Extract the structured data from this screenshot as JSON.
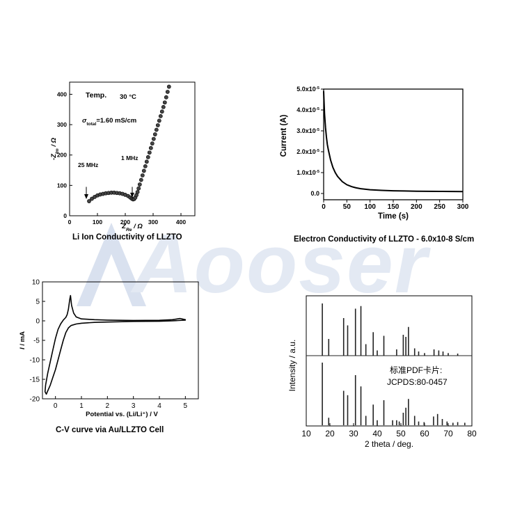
{
  "watermark": {
    "text": "Aooser",
    "color": "#c9d3e6"
  },
  "captions": {
    "impedance": "Li Ion Conductivity of LLZTO",
    "current": "Electron Conductivity of LLZTO   - 6.0x10-8 S/cm",
    "cv": "C-V curve via Au/LLZTO Cell"
  },
  "chart_data": [
    {
      "id": "impedance",
      "type": "scatter",
      "title": "",
      "xlabel_main": "Z",
      "xlabel_sub": "Re",
      "xlabel_unit": " / Ω",
      "ylabel_main": "-Z",
      "ylabel_sub": "Im",
      "ylabel_unit": " / Ω",
      "xlim": [
        0,
        450
      ],
      "ylim": [
        0,
        440
      ],
      "xticks": [
        "0",
        "100",
        "200",
        "300",
        "400"
      ],
      "yticks": [
        "0",
        "100",
        "200",
        "300",
        "400"
      ],
      "annotations": {
        "temp_label": "Temp.",
        "temp_value": "30 °C",
        "sigma_symbol": "σ",
        "sigma_sub": "total",
        "sigma_value": "=1.60 mS/cm",
        "left_freq": "25 MHz",
        "right_freq": "1 MHz"
      },
      "arrows": [
        {
          "x": 60,
          "y_from": 95,
          "y_to": 55
        },
        {
          "x": 225,
          "y_from": 95,
          "y_to": 60
        }
      ],
      "points": [
        [
          70,
          48
        ],
        [
          80,
          56
        ],
        [
          90,
          62
        ],
        [
          100,
          67
        ],
        [
          110,
          70
        ],
        [
          120,
          72
        ],
        [
          130,
          74
        ],
        [
          140,
          75
        ],
        [
          150,
          76
        ],
        [
          160,
          76
        ],
        [
          170,
          75
        ],
        [
          180,
          74
        ],
        [
          190,
          72
        ],
        [
          200,
          69
        ],
        [
          210,
          65
        ],
        [
          218,
          60
        ],
        [
          224,
          56
        ],
        [
          228,
          54
        ],
        [
          232,
          55
        ],
        [
          236,
          60
        ],
        [
          240,
          68
        ],
        [
          244,
          78
        ],
        [
          248,
          90
        ],
        [
          252,
          103
        ],
        [
          257,
          118
        ],
        [
          262,
          133
        ],
        [
          267,
          148
        ],
        [
          272,
          163
        ],
        [
          277,
          178
        ],
        [
          282,
          193
        ],
        [
          287,
          208
        ],
        [
          292,
          223
        ],
        [
          297,
          238
        ],
        [
          302,
          253
        ],
        [
          307,
          268
        ],
        [
          312,
          283
        ],
        [
          317,
          298
        ],
        [
          322,
          313
        ],
        [
          327,
          328
        ],
        [
          332,
          343
        ],
        [
          337,
          358
        ],
        [
          342,
          373
        ],
        [
          347,
          390
        ],
        [
          352,
          408
        ],
        [
          357,
          425
        ]
      ]
    },
    {
      "id": "current",
      "type": "line",
      "title": "",
      "xlabel": "Time (s)",
      "ylabel": "Current (A)",
      "xlim": [
        0,
        300
      ],
      "ylim": [
        -3e-06,
        5e-05
      ],
      "xticks": [
        "0",
        "50",
        "100",
        "150",
        "200",
        "250",
        "300"
      ],
      "ytick_values": [
        0,
        1e-05,
        2e-05,
        3e-05,
        4e-05,
        5e-05
      ],
      "ytick_mantissa": [
        "0.0",
        "1.0x10",
        "2.0x10",
        "3.0x10",
        "4.0x10",
        "5.0x10"
      ],
      "ytick_exp": [
        "",
        "-5",
        "-5",
        "-5",
        "-5",
        "-5"
      ],
      "x": [
        0,
        1,
        2,
        4,
        6,
        8,
        10,
        15,
        20,
        25,
        30,
        40,
        50,
        60,
        70,
        80,
        100,
        125,
        150,
        175,
        200,
        250,
        300
      ],
      "y": [
        4.9e-05,
        4.3e-05,
        3.8e-05,
        3.15e-05,
        2.7e-05,
        2.35e-05,
        2.1e-05,
        1.6e-05,
        1.25e-05,
        1e-05,
        8.2e-06,
        5.7e-06,
        4.2e-06,
        3.3e-06,
        2.7e-06,
        2.3e-06,
        1.8e-06,
        1.5e-06,
        1.3e-06,
        1.2e-06,
        1.1e-06,
        1e-06,
        9e-07
      ]
    },
    {
      "id": "cv",
      "type": "line",
      "title": "",
      "xlabel": "Potential vs. (Li/Li⁺) / V",
      "ylabel_italic": "I",
      "ylabel_unit": " / mA",
      "xlim": [
        -0.5,
        5.5
      ],
      "ylim": [
        -20,
        10
      ],
      "xticks": [
        "0",
        "1",
        "2",
        "3",
        "4",
        "5"
      ],
      "yticks": [
        "-20",
        "-15",
        "-10",
        "-5",
        "0",
        "5",
        "10"
      ],
      "x": [
        5.0,
        4.5,
        4.0,
        3.0,
        2.0,
        1.5,
        1.0,
        0.8,
        0.6,
        0.5,
        0.4,
        0.3,
        0.2,
        0.1,
        0.0,
        -0.1,
        -0.2,
        -0.3,
        -0.35,
        -0.4,
        -0.38,
        -0.3,
        -0.2,
        -0.1,
        0.0,
        0.1,
        0.2,
        0.3,
        0.4,
        0.45,
        0.5,
        0.55,
        0.58,
        0.62,
        0.7,
        0.8,
        1.0,
        1.5,
        2.0,
        3.0,
        4.0,
        4.5,
        4.8,
        5.0
      ],
      "y": [
        0.2,
        0,
        -0.1,
        -0.15,
        -0.3,
        -0.4,
        -0.6,
        -0.8,
        -1.2,
        -1.8,
        -3.0,
        -5.0,
        -7.5,
        -10.0,
        -12.5,
        -14.5,
        -16.5,
        -18.0,
        -18.8,
        -18.2,
        -16.5,
        -13.5,
        -10.5,
        -7.5,
        -4.5,
        -2.2,
        -0.8,
        0.2,
        0.9,
        1.6,
        3.0,
        5.5,
        6.5,
        4.0,
        2.0,
        1.0,
        0.5,
        0.3,
        0.2,
        0.1,
        0.15,
        0.3,
        0.6,
        0.3
      ]
    },
    {
      "id": "xrd",
      "type": "bar",
      "title": "",
      "xlabel": "2 theta / deg.",
      "ylabel": "Intensity / a.u.",
      "xlim": [
        10,
        80
      ],
      "xticks": [
        "10",
        "20",
        "30",
        "40",
        "50",
        "60",
        "70",
        "80"
      ],
      "annotation_line1": "标准PDF卡片:",
      "annotation_line2": "JCPDS:80-0457",
      "sample_peaks": [
        [
          16.8,
          1.0
        ],
        [
          19.5,
          0.32
        ],
        [
          25.8,
          0.72
        ],
        [
          27.5,
          0.58
        ],
        [
          30.8,
          0.9
        ],
        [
          33.1,
          0.95
        ],
        [
          35.2,
          0.22
        ],
        [
          38.3,
          0.45
        ],
        [
          40.0,
          0.1
        ],
        [
          42.8,
          0.38
        ],
        [
          48.2,
          0.12
        ],
        [
          51.0,
          0.4
        ],
        [
          52.1,
          0.36
        ],
        [
          53.2,
          0.55
        ],
        [
          55.8,
          0.14
        ],
        [
          57.5,
          0.08
        ],
        [
          60.0,
          0.05
        ],
        [
          64.0,
          0.12
        ],
        [
          66.0,
          0.1
        ],
        [
          67.8,
          0.08
        ],
        [
          70.0,
          0.05
        ],
        [
          74.0,
          0.04
        ]
      ],
      "reference_peaks": [
        [
          16.8,
          1.0
        ],
        [
          19.5,
          0.12
        ],
        [
          25.8,
          0.55
        ],
        [
          27.5,
          0.48
        ],
        [
          30.8,
          0.8
        ],
        [
          33.1,
          0.62
        ],
        [
          35.2,
          0.15
        ],
        [
          38.3,
          0.33
        ],
        [
          40.0,
          0.08
        ],
        [
          42.8,
          0.4
        ],
        [
          46.5,
          0.08
        ],
        [
          48.2,
          0.08
        ],
        [
          49.3,
          0.06
        ],
        [
          51.0,
          0.2
        ],
        [
          52.1,
          0.28
        ],
        [
          53.2,
          0.42
        ],
        [
          55.8,
          0.15
        ],
        [
          57.5,
          0.06
        ],
        [
          59.8,
          0.05
        ],
        [
          63.8,
          0.14
        ],
        [
          65.5,
          0.18
        ],
        [
          67.5,
          0.1
        ],
        [
          69.5,
          0.06
        ],
        [
          72.0,
          0.04
        ],
        [
          74.0,
          0.05
        ],
        [
          77.0,
          0.04
        ]
      ]
    }
  ]
}
